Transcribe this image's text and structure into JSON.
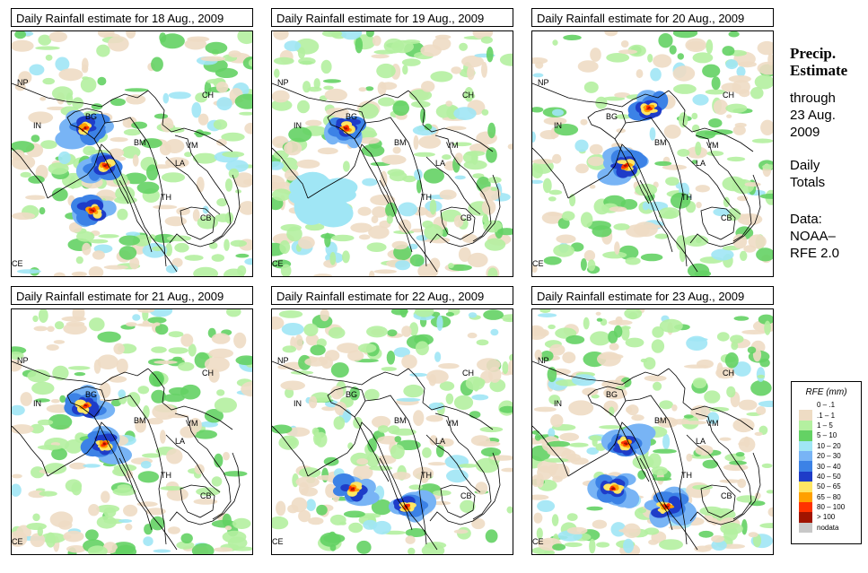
{
  "panels": [
    {
      "title": "Daily Rainfall estimate for  18 Aug., 2009",
      "intensity": 0.55,
      "seed": 11,
      "hotspots": [
        "IN-BG",
        "BM-coast",
        "bay"
      ]
    },
    {
      "title": "Daily Rainfall estimate for  19 Aug., 2009",
      "intensity": 0.75,
      "seed": 23,
      "hotspots": [
        "IN-BG",
        "bay-light"
      ]
    },
    {
      "title": "Daily Rainfall estimate for  20 Aug., 2009",
      "intensity": 0.45,
      "seed": 37,
      "hotspots": [
        "BG-north",
        "BM-coast"
      ]
    },
    {
      "title": "Daily Rainfall estimate for  21 Aug., 2009",
      "intensity": 0.5,
      "seed": 41,
      "hotspots": [
        "IN-BG",
        "BM-coast"
      ]
    },
    {
      "title": "Daily Rainfall estimate for  22 Aug., 2009",
      "intensity": 0.6,
      "seed": 53,
      "hotspots": [
        "bay",
        "BM-south"
      ]
    },
    {
      "title": "Daily Rainfall estimate for  23 Aug., 2009",
      "intensity": 0.8,
      "seed": 67,
      "hotspots": [
        "bay",
        "BM-south",
        "BM-coast"
      ]
    }
  ],
  "country_labels": [
    "NP",
    "IN",
    "BG",
    "BM",
    "CH",
    "VM",
    "LA",
    "TH",
    "CB",
    "CE"
  ],
  "side": {
    "title_line1": "Precip.",
    "title_line2": "Estimate",
    "through_label": "through",
    "date_line1": "23 Aug.",
    "date_line2": "2009",
    "totals_line1": "Daily",
    "totals_line2": "Totals",
    "data_line1": "Data:",
    "data_line2": "NOAA–",
    "data_line3": "RFE 2.0"
  },
  "legend": {
    "title": "RFE (mm)",
    "entries": [
      {
        "label": "0 – .1",
        "color": "#ffffff"
      },
      {
        "label": ".1 – 1",
        "color": "#eedcc4"
      },
      {
        "label": "1 – 5",
        "color": "#b4f0a0"
      },
      {
        "label": "5 – 10",
        "color": "#64d264"
      },
      {
        "label": "10 – 20",
        "color": "#a0e6f5"
      },
      {
        "label": "20 – 30",
        "color": "#78b4f5"
      },
      {
        "label": "30 – 40",
        "color": "#3c82e6"
      },
      {
        "label": "40 – 50",
        "color": "#1e3cc8"
      },
      {
        "label": "50 – 65",
        "color": "#ffe664"
      },
      {
        "label": "65 – 80",
        "color": "#ffa000"
      },
      {
        "label": "80 – 100",
        "color": "#ff3200"
      },
      {
        "label": "> 100",
        "color": "#a01400"
      },
      {
        "label": "nodata",
        "color": "#c8c8c8"
      }
    ]
  }
}
